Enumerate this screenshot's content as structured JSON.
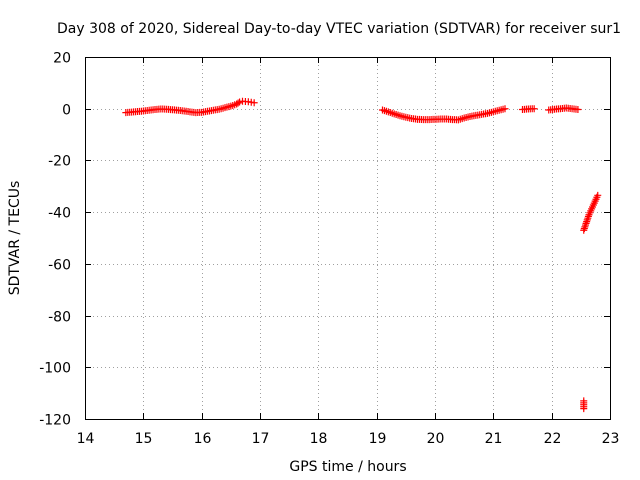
{
  "chart_data": {
    "type": "scatter",
    "title": "Day 308 of 2020, Sidereal Day-to-day VTEC variation (SDTVAR) for receiver sur1",
    "xlabel": "GPS time / hours",
    "ylabel": "SDTVAR / TECUs",
    "xlim": [
      14,
      23
    ],
    "ylim": [
      -120,
      20
    ],
    "xticks": [
      "14",
      "15",
      "16",
      "17",
      "18",
      "19",
      "20",
      "21",
      "22",
      "23"
    ],
    "yticks": [
      "20",
      "0",
      "-20",
      "-40",
      "-60",
      "-80",
      "-100",
      "-120"
    ],
    "grid": true,
    "marker": "+",
    "series": [
      {
        "name": "SDTVAR",
        "color": "#ff0000",
        "segments": [
          {
            "x": [
              14.7,
              14.8,
              14.9,
              15.0,
              15.1,
              15.2,
              15.3,
              15.4,
              15.5,
              15.6,
              15.7,
              15.8,
              15.9,
              16.0,
              16.1,
              16.2,
              16.3,
              16.4,
              16.5,
              16.6,
              16.65,
              16.7,
              16.75,
              16.8,
              16.85,
              16.9
            ],
            "y": [
              -1.5,
              -1.3,
              -1.1,
              -0.9,
              -0.6,
              -0.3,
              -0.1,
              -0.2,
              -0.4,
              -0.6,
              -0.9,
              -1.2,
              -1.5,
              -1.4,
              -1.0,
              -0.6,
              -0.2,
              0.4,
              1.0,
              1.8,
              2.6,
              2.9,
              2.8,
              2.7,
              2.5,
              2.3
            ]
          },
          {
            "x": [
              19.1,
              19.2,
              19.3,
              19.4,
              19.5,
              19.6,
              19.7,
              19.8,
              19.9,
              20.0,
              20.1,
              20.2,
              20.3,
              20.4,
              20.5,
              20.6,
              20.7,
              20.8,
              20.9,
              21.0,
              21.1,
              21.2
            ],
            "y": [
              -0.5,
              -1.2,
              -2.0,
              -2.7,
              -3.3,
              -3.8,
              -4.1,
              -4.2,
              -4.2,
              -4.1,
              -4.0,
              -4.0,
              -4.2,
              -4.3,
              -3.6,
              -3.0,
              -2.6,
              -2.2,
              -1.8,
              -1.2,
              -0.6,
              0.0
            ]
          },
          {
            "x": [
              21.5,
              21.6,
              21.7
            ],
            "y": [
              -0.3,
              -0.1,
              0.0
            ]
          },
          {
            "x": [
              21.95,
              22.05,
              22.15,
              22.25,
              22.35,
              22.45
            ],
            "y": [
              -0.5,
              -0.2,
              0.0,
              0.3,
              0.0,
              -0.3
            ]
          },
          {
            "x": [
              22.55,
              22.58,
              22.61,
              22.64,
              22.67,
              22.7,
              22.73,
              22.76,
              22.79
            ],
            "y": [
              -47,
              -45,
              -43,
              -41,
              -39.5,
              -38,
              -36.5,
              -35,
              -33.5
            ]
          },
          {
            "x": [
              22.55,
              22.55
            ],
            "y": [
              -113,
              -116
            ]
          }
        ]
      }
    ]
  }
}
